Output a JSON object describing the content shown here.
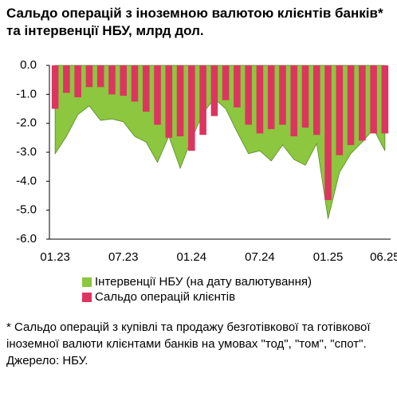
{
  "chart_data": {
    "type": "bar-area",
    "title": "Сальдо операцій з іноземною валютою клієнтів банків* та інтервенції НБУ, млрд дол.",
    "categories": [
      "01.23",
      null,
      null,
      null,
      null,
      null,
      "07.23",
      null,
      null,
      null,
      null,
      null,
      "01.24",
      null,
      null,
      null,
      null,
      null,
      "07.24",
      null,
      null,
      null,
      null,
      null,
      "01.25",
      null,
      null,
      null,
      null,
      "06.25"
    ],
    "series": [
      {
        "name": "Інтервенції НБУ (на дату валютування)",
        "color": "#8dc63f",
        "kind": "area",
        "values": [
          -3.05,
          -2.45,
          -1.7,
          -1.4,
          -1.9,
          -1.85,
          -1.95,
          -2.45,
          -2.65,
          -3.35,
          -2.45,
          -3.55,
          -2.55,
          -1.65,
          -1.15,
          -1.5,
          -2.3,
          -3.05,
          -2.95,
          -3.3,
          -2.75,
          -3.25,
          -3.45,
          -2.7,
          -5.3,
          -3.7,
          -3.05,
          -2.65,
          -2.2,
          -2.95
        ]
      },
      {
        "name": "Сальдо операцій клієнтів",
        "color": "#dc3560",
        "kind": "bar",
        "values": [
          -1.5,
          -0.95,
          -1.1,
          -0.75,
          -0.75,
          -1.0,
          -1.05,
          -1.25,
          -1.6,
          -2.05,
          -2.5,
          -2.45,
          -2.95,
          -2.4,
          -1.75,
          -1.2,
          -1.45,
          -2.05,
          -2.35,
          -2.2,
          -2.05,
          -2.45,
          -2.15,
          -2.4,
          -4.65,
          -3.1,
          -2.75,
          -2.6,
          -2.35,
          -2.35
        ]
      }
    ],
    "ylim": [
      -6,
      0
    ],
    "yticks": [
      {
        "value": 0,
        "label": "0.0"
      },
      {
        "value": -1,
        "label": "-1.0"
      },
      {
        "value": -2,
        "label": "-2.0"
      },
      {
        "value": -3,
        "label": "-3.0"
      },
      {
        "value": -4,
        "label": "-4.0"
      },
      {
        "value": -5,
        "label": "-5.0"
      },
      {
        "value": -6,
        "label": "-6.0"
      }
    ],
    "footnote": "* Сальдо операцій з купівлі та продажу безготівкової та готівкової іноземної валюти клієнтами банків на умовах \"тод\", \"том\", \"спот\".",
    "source": "Джерело: НБУ."
  }
}
